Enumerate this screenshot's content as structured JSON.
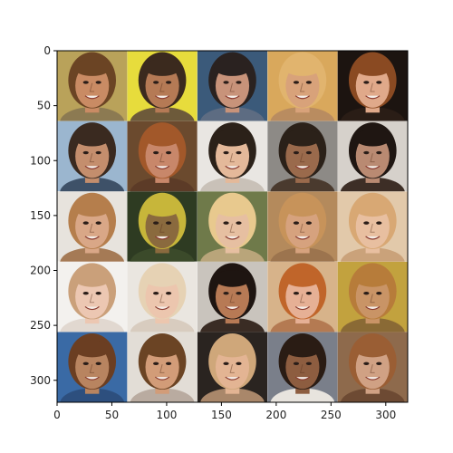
{
  "chart_data": {
    "type": "image_grid",
    "title": "",
    "xlabel": "",
    "ylabel": "",
    "xlim": [
      0,
      320
    ],
    "ylim": [
      320,
      0
    ],
    "grid": false,
    "rows": 5,
    "cols": 5,
    "tile_size_px": 64,
    "x_ticks": [
      0,
      50,
      100,
      150,
      200,
      250,
      300
    ],
    "y_ticks": [
      0,
      50,
      100,
      150,
      200,
      250,
      300
    ],
    "tiles": [
      {
        "row": 0,
        "col": 0,
        "bg": "#b9a25a",
        "hair": "#6b4424",
        "skin": "#c98b64",
        "shirt": "#8c7a52"
      },
      {
        "row": 0,
        "col": 1,
        "bg": "#e7dc3c",
        "hair": "#3b2a1e",
        "skin": "#b57a55",
        "shirt": "#6d5a3a"
      },
      {
        "row": 0,
        "col": 2,
        "bg": "#3b5a7a",
        "hair": "#2a2220",
        "skin": "#c8937a",
        "shirt": "#5d6c82"
      },
      {
        "row": 0,
        "col": 3,
        "bg": "#d9a85c",
        "hair": "#e1b46e",
        "skin": "#d8a27a",
        "shirt": "#b98c60"
      },
      {
        "row": 0,
        "col": 4,
        "bg": "#1c1410",
        "hair": "#8a4a22",
        "skin": "#e0a98a",
        "shirt": "#2a1d16"
      },
      {
        "row": 1,
        "col": 0,
        "bg": "#9bb6cf",
        "hair": "#3a2a20",
        "skin": "#c48e6d",
        "shirt": "#3e5168"
      },
      {
        "row": 1,
        "col": 1,
        "bg": "#6b4a2e",
        "hair": "#a2582a",
        "skin": "#c8876a",
        "shirt": "#5c3b27"
      },
      {
        "row": 1,
        "col": 2,
        "bg": "#e9e6e2",
        "hair": "#2b2119",
        "skin": "#e4b99a",
        "shirt": "#c9c1b8"
      },
      {
        "row": 1,
        "col": 3,
        "bg": "#8d8a86",
        "hair": "#2b2119",
        "skin": "#9a6a4c",
        "shirt": "#4a3a2e"
      },
      {
        "row": 1,
        "col": 4,
        "bg": "#d6d1cb",
        "hair": "#1f1612",
        "skin": "#b98a72",
        "shirt": "#3d2e26"
      },
      {
        "row": 2,
        "col": 0,
        "bg": "#e7e3dd",
        "hair": "#b57e4c",
        "skin": "#d9a787",
        "shirt": "#a57a55"
      },
      {
        "row": 2,
        "col": 1,
        "bg": "#2e3b22",
        "hair": "#c7b63a",
        "skin": "#8a6a3e",
        "shirt": "#3b4a2a"
      },
      {
        "row": 2,
        "col": 2,
        "bg": "#6f7a4a",
        "hair": "#e8c98e",
        "skin": "#e6bfa1",
        "shirt": "#b9a57a"
      },
      {
        "row": 2,
        "col": 3,
        "bg": "#b48a5c",
        "hair": "#c7935a",
        "skin": "#d6a27e",
        "shirt": "#9c744e"
      },
      {
        "row": 2,
        "col": 4,
        "bg": "#e2c9aa",
        "hair": "#d8a874",
        "skin": "#e8bfa0",
        "shirt": "#caa27a"
      },
      {
        "row": 3,
        "col": 0,
        "bg": "#f3f1ee",
        "hair": "#caa07a",
        "skin": "#ecc7b2",
        "shirt": "#e1d8d0"
      },
      {
        "row": 3,
        "col": 1,
        "bg": "#eae6e0",
        "hair": "#e6d2b4",
        "skin": "#ecc6ae",
        "shirt": "#d8ccbf"
      },
      {
        "row": 3,
        "col": 2,
        "bg": "#c9c4bd",
        "hair": "#1e1511",
        "skin": "#b77a55",
        "shirt": "#3a2c24"
      },
      {
        "row": 3,
        "col": 3,
        "bg": "#d7b38a",
        "hair": "#c0652a",
        "skin": "#e6b095",
        "shirt": "#b47a52"
      },
      {
        "row": 3,
        "col": 4,
        "bg": "#c2a23e",
        "hair": "#b77c3a",
        "skin": "#c99466",
        "shirt": "#8a6a35"
      },
      {
        "row": 4,
        "col": 0,
        "bg": "#3a6aa5",
        "hair": "#6b3e22",
        "skin": "#b88460",
        "shirt": "#2d4f7e"
      },
      {
        "row": 4,
        "col": 1,
        "bg": "#e2ddd6",
        "hair": "#6b4424",
        "skin": "#d29c78",
        "shirt": "#b9aba0"
      },
      {
        "row": 4,
        "col": 2,
        "bg": "#2a2420",
        "hair": "#cfa77a",
        "skin": "#e3b493",
        "shirt": "#a9876a"
      },
      {
        "row": 4,
        "col": 3,
        "bg": "#7a7f8a",
        "hair": "#2a1c14",
        "skin": "#8d5d40",
        "shirt": "#e8e4de"
      },
      {
        "row": 4,
        "col": 4,
        "bg": "#8e6a4c",
        "hair": "#9a5e34",
        "skin": "#d0a184",
        "shirt": "#6d4a33"
      }
    ]
  }
}
